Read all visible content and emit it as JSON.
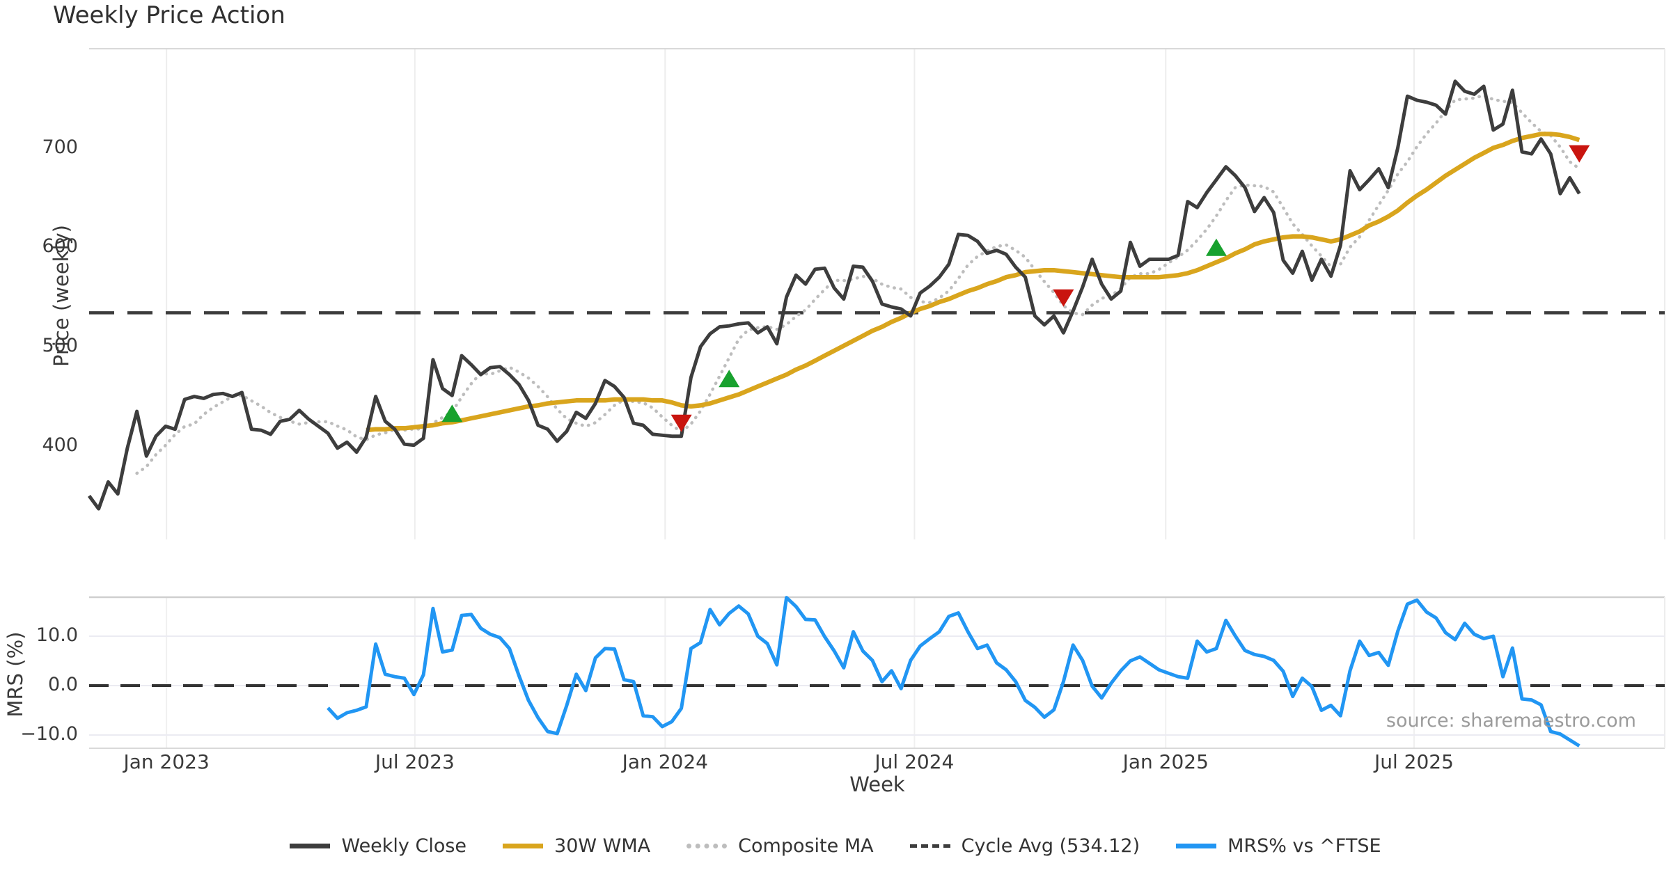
{
  "title": "Weekly Price Action",
  "source_note": "source: sharemaestro.com",
  "axes": {
    "price": {
      "label": "Price (weekly)",
      "ticks": [
        700,
        600,
        500,
        400
      ],
      "ylim": [
        306,
        794
      ]
    },
    "mrs": {
      "label": "MRS (%)",
      "ticks": [
        "10.0",
        "0.0",
        "−10.0"
      ],
      "tick_values": [
        10,
        0,
        -10
      ],
      "ylim": [
        -13,
        18
      ]
    },
    "x": {
      "label": "Week",
      "ticks": [
        {
          "label": "Jan 2023",
          "week": 8.1
        },
        {
          "label": "Jul 2023",
          "week": 34.1
        },
        {
          "label": "Jan 2024",
          "week": 60.3
        },
        {
          "label": "Jul 2024",
          "week": 86.4
        },
        {
          "label": "Jan 2025",
          "week": 112.7
        },
        {
          "label": "Jul 2025",
          "week": 138.7
        }
      ]
    }
  },
  "legend": [
    {
      "label": "Weekly Close",
      "style": "solid",
      "color": "#3d3d3d"
    },
    {
      "label": "30W WMA",
      "style": "solid",
      "color": "#d9a51d"
    },
    {
      "label": "Composite MA",
      "style": "dotted",
      "color": "#bdbdbd"
    },
    {
      "label": "Cycle Avg (534.12)",
      "style": "dashed",
      "color": "#3d3d3d"
    },
    {
      "label": "MRS% vs ^FTSE",
      "style": "solid",
      "color": "#2196f3"
    }
  ],
  "chart_data": [
    {
      "type": "line",
      "panel": "price",
      "title": "Weekly Price Action",
      "x_unit": "week",
      "start_week": "2022-11-07",
      "weeks": 157,
      "grid": "vertical-months",
      "series": [
        {
          "name": "Weekly Close",
          "color": "#3d3d3d",
          "start_index": 0,
          "values": [
            350,
            337,
            364,
            352,
            398,
            435,
            390,
            410,
            420,
            417,
            447,
            450,
            448,
            452,
            453,
            450,
            454,
            417,
            416,
            412,
            425,
            427,
            436,
            427,
            420,
            413,
            398,
            404,
            394,
            409,
            450,
            425,
            417,
            402,
            401,
            408,
            487,
            458,
            451,
            491,
            482,
            472,
            479,
            480,
            472,
            462,
            446,
            421,
            417,
            405,
            415,
            434,
            428,
            443,
            466,
            460,
            449,
            423,
            421,
            412,
            411,
            410,
            410,
            469,
            500,
            513,
            520,
            521,
            523,
            524,
            514,
            520,
            503,
            550,
            572,
            563,
            578,
            579,
            559,
            548,
            581,
            580,
            566,
            543,
            540,
            538,
            531,
            554,
            561,
            570,
            583,
            613,
            612,
            606,
            594,
            597,
            593,
            580,
            570,
            531,
            522,
            531,
            514,
            536,
            560,
            588,
            563,
            548,
            556,
            605,
            581,
            588,
            588,
            588,
            592,
            646,
            640,
            655,
            668,
            681,
            672,
            660,
            636,
            650,
            635,
            587,
            574,
            596,
            567,
            588,
            571,
            602,
            677,
            658,
            668,
            679,
            660,
            700,
            752,
            748,
            746,
            743,
            734,
            767,
            757,
            754,
            762,
            718,
            724,
            758,
            696,
            694,
            709,
            694,
            654,
            670,
            654
          ]
        },
        {
          "name": "30W WMA",
          "color": "#d9a51d",
          "start_index": 29,
          "values": [
            416,
            417,
            417,
            418,
            418,
            419,
            420,
            421,
            423,
            424,
            426,
            428,
            430,
            432,
            434,
            436,
            438,
            440,
            441,
            443,
            444,
            445,
            446,
            446,
            446,
            446,
            447,
            447,
            447,
            447,
            446,
            446,
            444,
            441,
            440,
            441,
            443,
            446,
            449,
            452,
            456,
            460,
            464,
            468,
            472,
            477,
            481,
            486,
            491,
            496,
            501,
            506,
            511,
            516,
            520,
            525,
            529,
            534,
            538,
            541,
            545,
            548,
            552,
            556,
            559,
            563,
            566,
            570,
            572,
            575,
            576,
            577,
            577,
            576,
            575,
            574,
            573,
            572,
            571,
            570,
            570,
            570,
            570,
            570,
            571,
            572,
            574,
            577,
            581,
            585,
            589,
            594,
            598,
            603,
            606,
            608,
            610,
            611,
            611,
            610,
            608,
            606,
            608,
            612,
            616,
            622,
            626,
            631,
            637,
            645,
            652,
            658,
            665,
            672,
            678,
            684,
            690,
            695,
            700,
            703,
            707,
            710,
            712,
            714,
            714,
            713,
            711,
            708
          ]
        },
        {
          "name": "Composite MA",
          "color": "#bdbdbd",
          "derived": {
            "method": "sma_of_weekly_close",
            "window": 6
          }
        },
        {
          "name": "Cycle Avg",
          "color": "#3d3d3d",
          "style": "dashed",
          "value": 534.12
        }
      ],
      "markers": {
        "buy": {
          "shape": "triangle-up",
          "color": "#18a12e",
          "points": [
            {
              "week": 38,
              "value": 432
            },
            {
              "week": 67,
              "value": 467
            },
            {
              "week": 118,
              "value": 599
            }
          ]
        },
        "sell": {
          "shape": "triangle-down",
          "color": "#c9150f",
          "points": [
            {
              "week": 62,
              "value": 424
            },
            {
              "week": 102,
              "value": 550
            },
            {
              "week": 156,
              "value": 695
            }
          ]
        }
      }
    },
    {
      "type": "line",
      "panel": "mrs",
      "x_unit": "week",
      "zero_line": 0,
      "series": [
        {
          "name": "MRS% vs ^FTSE",
          "color": "#2196f3",
          "start_index": 25,
          "values": [
            -4.5,
            -6.6,
            -5.5,
            -5.0,
            -4.3,
            8.4,
            2.3,
            1.8,
            1.5,
            -1.8,
            2.2,
            15.6,
            6.8,
            7.2,
            14.2,
            14.4,
            11.6,
            10.4,
            9.7,
            7.5,
            2.0,
            -3.0,
            -6.5,
            -9.3,
            -9.7,
            -4.0,
            2.3,
            -1.0,
            5.6,
            7.5,
            7.4,
            1.2,
            0.8,
            -6.1,
            -6.3,
            -8.3,
            -7.3,
            -4.6,
            7.5,
            8.7,
            15.4,
            12.3,
            14.6,
            16.1,
            14.5,
            10.0,
            8.5,
            4.2,
            17.8,
            16.0,
            13.4,
            13.3,
            9.9,
            7.0,
            3.6,
            10.9,
            7.0,
            5.1,
            0.8,
            3.0,
            -0.6,
            5.1,
            8.0,
            9.5,
            10.9,
            14.0,
            14.7,
            10.9,
            7.5,
            8.2,
            4.6,
            3.2,
            0.8,
            -3.0,
            -4.4,
            -6.4,
            -4.9,
            0.8,
            8.2,
            5.1,
            -0.1,
            -2.5,
            0.5,
            3.0,
            5.0,
            5.8,
            4.5,
            3.2,
            2.5,
            1.8,
            1.5,
            9.0,
            6.8,
            7.5,
            13.2,
            10.0,
            7.1,
            6.3,
            5.9,
            5.1,
            2.9,
            -2.2,
            1.5,
            -0.2,
            -5.0,
            -4.0,
            -6.1,
            3.0,
            9.0,
            6.1,
            6.7,
            4.1,
            11.0,
            16.5,
            17.3,
            14.9,
            13.7,
            10.7,
            9.3,
            12.6,
            10.4,
            9.5,
            10.0,
            1.8,
            7.6,
            -2.7,
            -2.9,
            -3.9,
            -9.3,
            -9.8,
            -11.0,
            -12.2
          ]
        }
      ]
    }
  ]
}
